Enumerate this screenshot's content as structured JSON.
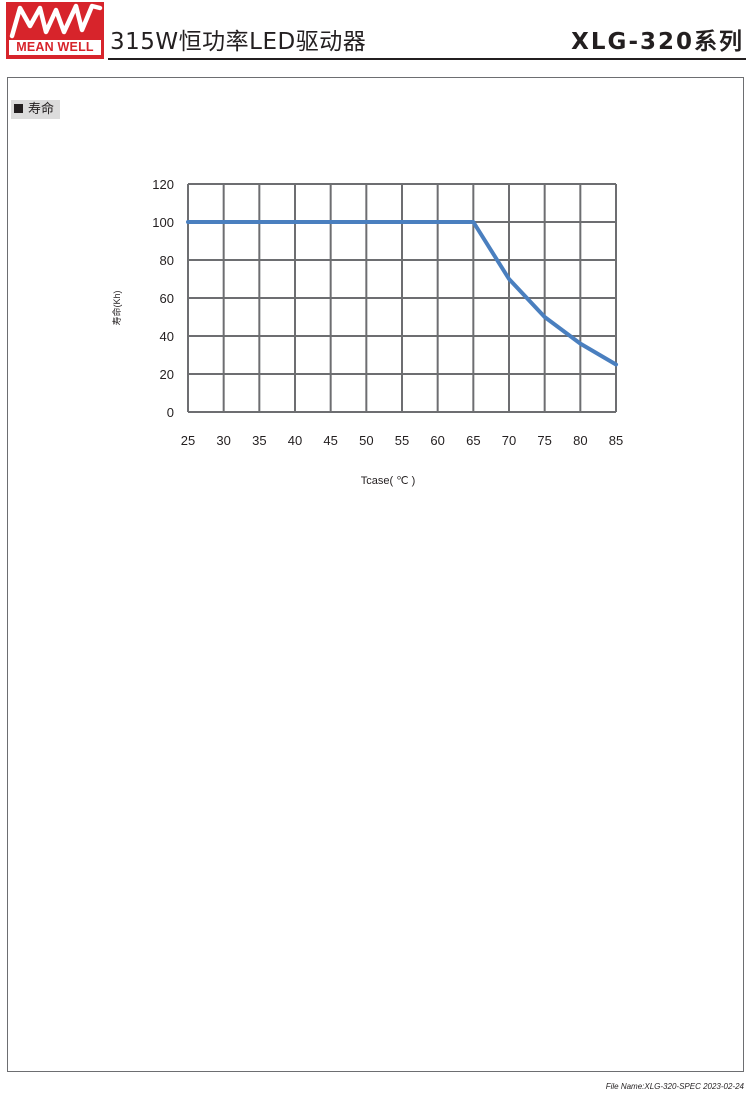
{
  "header": {
    "logo_text": "MEAN WELL",
    "product_title": "315W恒功率LED驱动器",
    "series_title": "XLG-320系列"
  },
  "section": {
    "label": "寿命"
  },
  "chart_data": {
    "type": "line",
    "x": [
      25,
      30,
      35,
      40,
      45,
      50,
      55,
      60,
      65,
      70,
      75,
      80,
      85
    ],
    "series": [
      {
        "values": [
          100,
          100,
          100,
          100,
          100,
          100,
          100,
          100,
          100,
          70,
          50,
          36,
          25
        ]
      }
    ],
    "xlabel": "Tcase( ℃ )",
    "ylabel": "寿命(Kh)",
    "xlim": [
      25,
      85
    ],
    "ylim": [
      0,
      120
    ],
    "x_ticks": [
      25,
      30,
      35,
      40,
      45,
      50,
      55,
      60,
      65,
      70,
      75,
      80,
      85
    ],
    "y_ticks": [
      0,
      20,
      40,
      60,
      80,
      100,
      120
    ],
    "grid": true,
    "line_color": "#4a7fbf",
    "grid_color": "#6d6e71"
  },
  "footer": {
    "file_name": "File Name:XLG-320-SPEC 2023-02-24"
  }
}
